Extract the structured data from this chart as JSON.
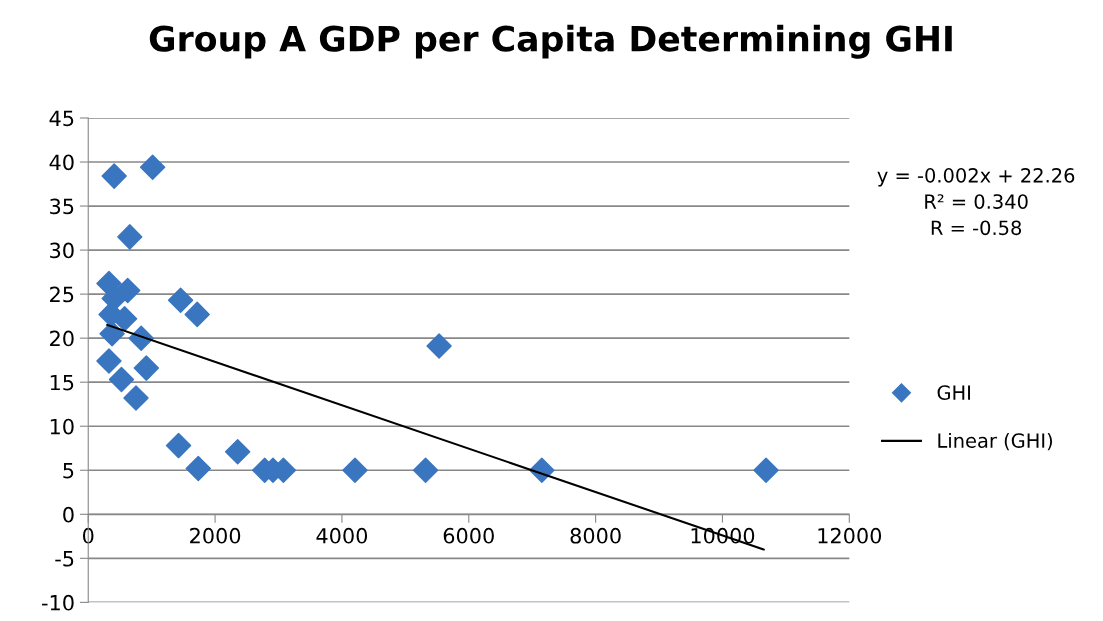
{
  "chart_data": {
    "type": "scatter",
    "title": "Group A GDP per Capita Determining GHI",
    "series": [
      {
        "name": "GHI",
        "color": "#3a76c0",
        "marker": "diamond",
        "x": [
          409,
          1015,
          655,
          327,
          409,
          622,
          360,
          573,
          376,
          835,
          327,
          524,
          753,
          916,
          1456,
          1718,
          1424,
          1735,
          2356,
          2782,
          2913,
          3077,
          4206,
          5319,
          7152,
          10687,
          5532
        ],
        "values": [
          38.4,
          39.4,
          31.5,
          26.2,
          24.5,
          25.4,
          22.7,
          22.2,
          20.5,
          20.0,
          17.4,
          15.3,
          13.2,
          16.6,
          24.3,
          22.7,
          7.8,
          5.2,
          7.1,
          5.0,
          5.0,
          5.0,
          5.0,
          5.0,
          5.0,
          5.0,
          19.1
        ]
      },
      {
        "name": "Linear (GHI)",
        "type": "line",
        "color": "#000000",
        "marker": "none",
        "line_style": "solid",
        "x": [
          300,
          10650
        ],
        "values": [
          21.5,
          -4.0
        ]
      }
    ],
    "xlim": [
      0,
      12000
    ],
    "xticks": [
      0,
      2000,
      4000,
      6000,
      8000,
      10000,
      12000
    ],
    "ylim": [
      -10,
      45
    ],
    "yticks": [
      -10,
      -5,
      0,
      5,
      10,
      15,
      20,
      25,
      30,
      35,
      40,
      45
    ],
    "grid": "y",
    "legend": "right",
    "annotations": [
      "y = -0.002x + 22.26\nR² = 0.340\nR = -0.58"
    ]
  }
}
